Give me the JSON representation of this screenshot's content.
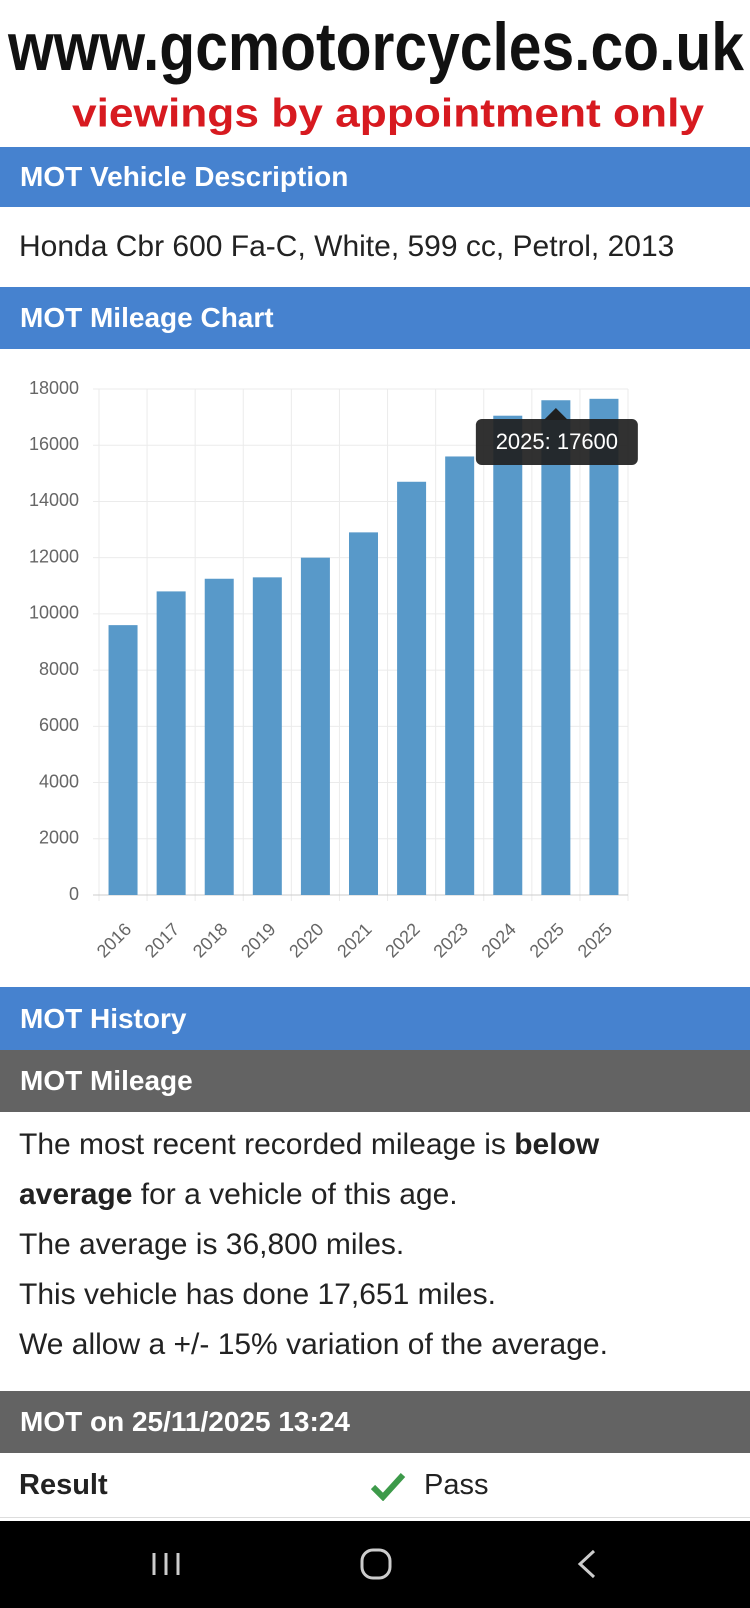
{
  "header": {
    "site": "www.gcmotorcycles.co.uk",
    "tagline": "viewings by appointment only"
  },
  "description": {
    "heading": "MOT Vehicle Description",
    "text": "Honda Cbr 600 Fa-C, White, 599 cc, Petrol, 2013"
  },
  "chart_section": {
    "heading": "MOT Mileage Chart"
  },
  "chart_data": {
    "type": "bar",
    "categories": [
      "2016",
      "2017",
      "2018",
      "2019",
      "2020",
      "2021",
      "2022",
      "2023",
      "2024",
      "2025",
      "2025"
    ],
    "values": [
      9600,
      10800,
      11250,
      11300,
      12000,
      12900,
      14700,
      15600,
      17050,
      17600,
      17651
    ],
    "color": "#5899c9",
    "ylim": [
      0,
      18000
    ],
    "yticks": [
      0,
      2000,
      4000,
      6000,
      8000,
      10000,
      12000,
      14000,
      16000,
      18000
    ],
    "grid": true,
    "tooltip": "2025: 17600"
  },
  "history": {
    "heading": "MOT History",
    "subheading": "MOT Mileage",
    "paragraph": {
      "before": "The most recent recorded mileage is ",
      "bold": "below average",
      "after": " for a vehicle of this age."
    },
    "lines": [
      "The average is 36,800 miles.",
      "This vehicle has done 17,651 miles.",
      "We allow a +/- 15% variation of the average."
    ]
  },
  "mot": {
    "heading": "MOT on 25/11/2025 13:24",
    "result_label": "Result",
    "result_value": "Pass"
  }
}
